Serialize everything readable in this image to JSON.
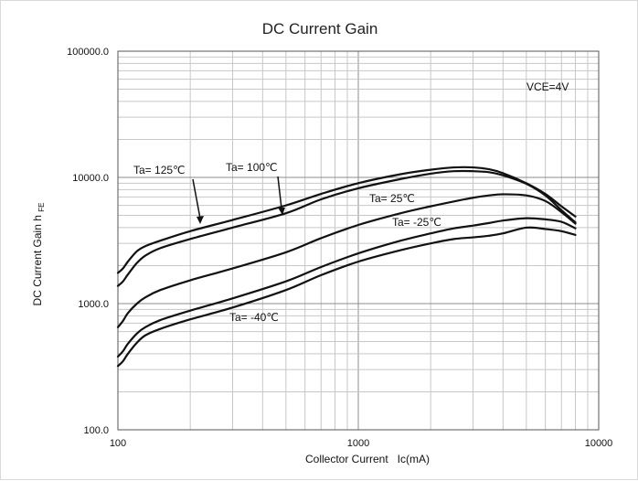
{
  "chart_data": {
    "type": "line",
    "title": "DC Current Gain",
    "xlabel": "Collector Current   Ic(mA)",
    "ylabel": "DC Current Gain  h",
    "ylabel_subscript": "FE",
    "xscale": "log",
    "yscale": "log",
    "xlim": [
      100,
      10000
    ],
    "ylim": [
      100,
      100000
    ],
    "x_ticks": [
      "100",
      "1000",
      "10000"
    ],
    "y_ticks": [
      "100.0",
      "1000.0",
      "10000.0",
      "100000.0"
    ],
    "grid": true,
    "condition": "VCE=4V",
    "series": [
      {
        "name": "Ta= 125℃",
        "x": [
          100,
          105,
          110,
          120,
          130,
          150,
          200,
          300,
          500,
          700,
          1000,
          1500,
          2000,
          2500,
          3000,
          3500,
          4000,
          5000,
          6000,
          7000,
          8000
        ],
        "y": [
          1750,
          1900,
          2150,
          2600,
          2850,
          3150,
          3750,
          4600,
          6000,
          7400,
          9000,
          10600,
          11500,
          12000,
          12000,
          11600,
          10800,
          9000,
          7400,
          5900,
          4900
        ]
      },
      {
        "name": "Ta= 100℃",
        "x": [
          100,
          105,
          110,
          120,
          130,
          150,
          200,
          300,
          500,
          700,
          1000,
          1500,
          2000,
          2500,
          3000,
          3500,
          4000,
          5000,
          6000,
          7000,
          8000
        ],
        "y": [
          1380,
          1500,
          1700,
          2100,
          2400,
          2750,
          3250,
          4000,
          5200,
          6700,
          8200,
          9700,
          10700,
          11200,
          11200,
          11000,
          10400,
          8900,
          7200,
          5500,
          4400
        ]
      },
      {
        "name": "Ta= 25℃",
        "x": [
          100,
          105,
          110,
          120,
          130,
          150,
          200,
          300,
          500,
          700,
          1000,
          1500,
          2000,
          2500,
          3000,
          3500,
          4000,
          5000,
          6000,
          7000,
          8000
        ],
        "y": [
          650,
          730,
          840,
          1000,
          1120,
          1280,
          1530,
          1900,
          2550,
          3300,
          4200,
          5200,
          5900,
          6450,
          6900,
          7200,
          7350,
          7200,
          6500,
          5300,
          4300
        ]
      },
      {
        "name": "Ta= -25℃",
        "x": [
          100,
          105,
          110,
          120,
          130,
          150,
          200,
          300,
          500,
          700,
          1000,
          1500,
          2000,
          2500,
          3000,
          3500,
          4000,
          5000,
          6000,
          7000,
          8000
        ],
        "y": [
          380,
          420,
          480,
          580,
          650,
          740,
          880,
          1100,
          1500,
          1950,
          2500,
          3150,
          3600,
          3950,
          4150,
          4350,
          4550,
          4750,
          4650,
          4450,
          3950
        ]
      },
      {
        "name": "Ta= -40℃",
        "x": [
          100,
          105,
          110,
          120,
          130,
          150,
          200,
          300,
          500,
          700,
          1000,
          1500,
          2000,
          2500,
          3000,
          3500,
          4000,
          5000,
          6000,
          7000,
          8000
        ],
        "y": [
          320,
          350,
          400,
          490,
          560,
          630,
          750,
          930,
          1280,
          1680,
          2150,
          2650,
          3000,
          3250,
          3350,
          3450,
          3600,
          4000,
          3900,
          3750,
          3500
        ]
      }
    ],
    "annotations": {
      "ta125": "Ta= 125℃",
      "ta100": "Ta= 100℃",
      "ta25": "Ta= 25℃",
      "tam25": "Ta= -25℃",
      "tam40": "Ta= -40℃"
    }
  }
}
